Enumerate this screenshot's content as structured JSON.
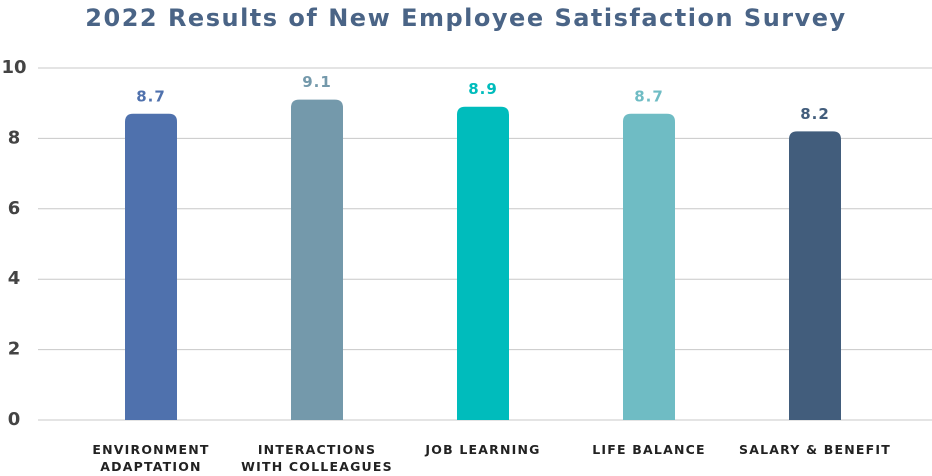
{
  "chart_data": {
    "type": "bar",
    "title": "2022 Results of New Employee Satisfaction Survey",
    "categories": [
      "ENVIRONMENT ADAPTATION",
      "INTERACTIONS WITH COLLEAGUES",
      "JOB LEARNING",
      "LIFE BALANCE",
      "SALARY & BENEFIT"
    ],
    "values": [
      8.7,
      9.1,
      8.9,
      8.7,
      8.2
    ],
    "colors": [
      "#4f71ad",
      "#7499ab",
      "#00bcbc",
      "#6fbcc4",
      "#425d7c"
    ],
    "ylim": [
      0,
      10
    ],
    "yticks": [
      0,
      2,
      4,
      6,
      8,
      10
    ],
    "grid": true
  }
}
